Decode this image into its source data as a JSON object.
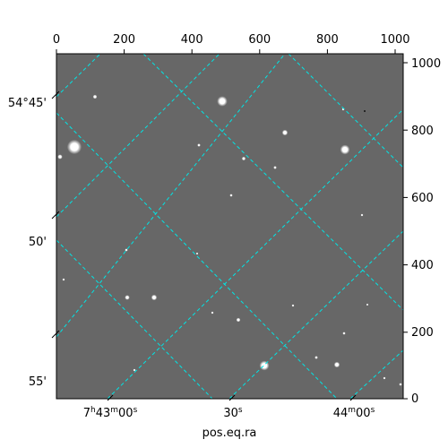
{
  "image": {
    "description_colors": {
      "background": "#676767",
      "grid": "#00e5e5",
      "frame": "#000000",
      "star": "#ffffff"
    }
  },
  "axes": {
    "xlabel": "pos.eq.ra",
    "top_ticks": [
      "0",
      "200",
      "400",
      "600",
      "800",
      "1000"
    ],
    "right_ticks": [
      "1000",
      "800",
      "600",
      "400",
      "200",
      "0"
    ],
    "left_ticks": [
      "54°45'",
      "50'",
      "55'"
    ],
    "bottom_ticks": [
      {
        "h": "7",
        "m": "43",
        "s": "00"
      },
      {
        "s": "30"
      },
      {
        "m": "44",
        "s": "00"
      }
    ]
  }
}
